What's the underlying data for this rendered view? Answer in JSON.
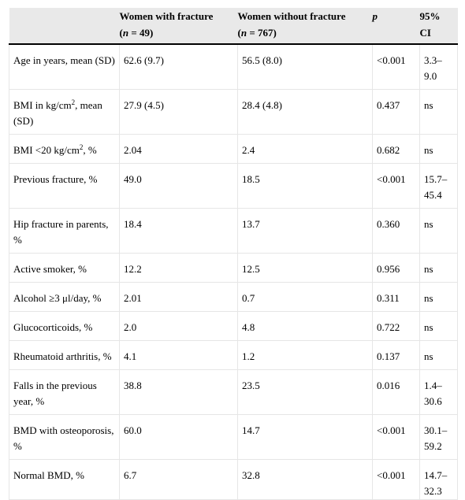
{
  "header": {
    "col1": "",
    "col2_line1": "Women with fracture",
    "col2_n_var": "n",
    "col2_n_val": " = 49)",
    "col3_line1": "Women without fracture",
    "col3_n_var": "n",
    "col3_n_val": " = 767)",
    "col4": "p",
    "col5_line1": "95%",
    "col5_line2": "CI"
  },
  "rows": [
    {
      "label": "Age in years, mean (SD)",
      "with": "62.6 (9.7)",
      "without": "56.5 (8.0)",
      "p": "<0.001",
      "ci": "3.3–9.0"
    },
    {
      "label_pre": "BMI in kg/cm",
      "label_sup": "2",
      "label_post": ", mean (SD)",
      "with": "27.9 (4.5)",
      "without": "28.4 (4.8)",
      "p": "0.437",
      "ci": "ns"
    },
    {
      "label_pre": "BMI <20 kg/cm",
      "label_sup": "2",
      "label_post": ", %",
      "with": "2.04",
      "without": "2.4",
      "p": "0.682",
      "ci": "ns"
    },
    {
      "label": "Previous fracture, %",
      "with": "49.0",
      "without": "18.5",
      "p": "<0.001",
      "ci": "15.7–45.4"
    },
    {
      "label": "Hip fracture in parents, %",
      "with": "18.4",
      "without": "13.7",
      "p": "0.360",
      "ci": "ns"
    },
    {
      "label": "Active smoker, %",
      "with": "12.2",
      "without": "12.5",
      "p": "0.956",
      "ci": "ns"
    },
    {
      "label": "Alcohol ≥3 μl/day, %",
      "with": "2.01",
      "without": "0.7",
      "p": "0.311",
      "ci": "ns"
    },
    {
      "label": "Glucocorticoids, %",
      "with": "2.0",
      "without": "4.8",
      "p": "0.722",
      "ci": "ns"
    },
    {
      "label": "Rheumatoid arthritis, %",
      "with": "4.1",
      "without": "1.2",
      "p": "0.137",
      "ci": "ns"
    },
    {
      "label": "Falls in the previous year, %",
      "with": "38.8",
      "without": "23.5",
      "p": "0.016",
      "ci": "1.4–30.6"
    },
    {
      "label": "BMD with osteoporosis, %",
      "with": "60.0",
      "without": "14.7",
      "p": "<0.001",
      "ci": "30.1–59.2"
    },
    {
      "label": "Normal BMD, %",
      "with": "6.7",
      "without": "32.8",
      "p": "<0.001",
      "ci": "14.7–32.3"
    }
  ]
}
